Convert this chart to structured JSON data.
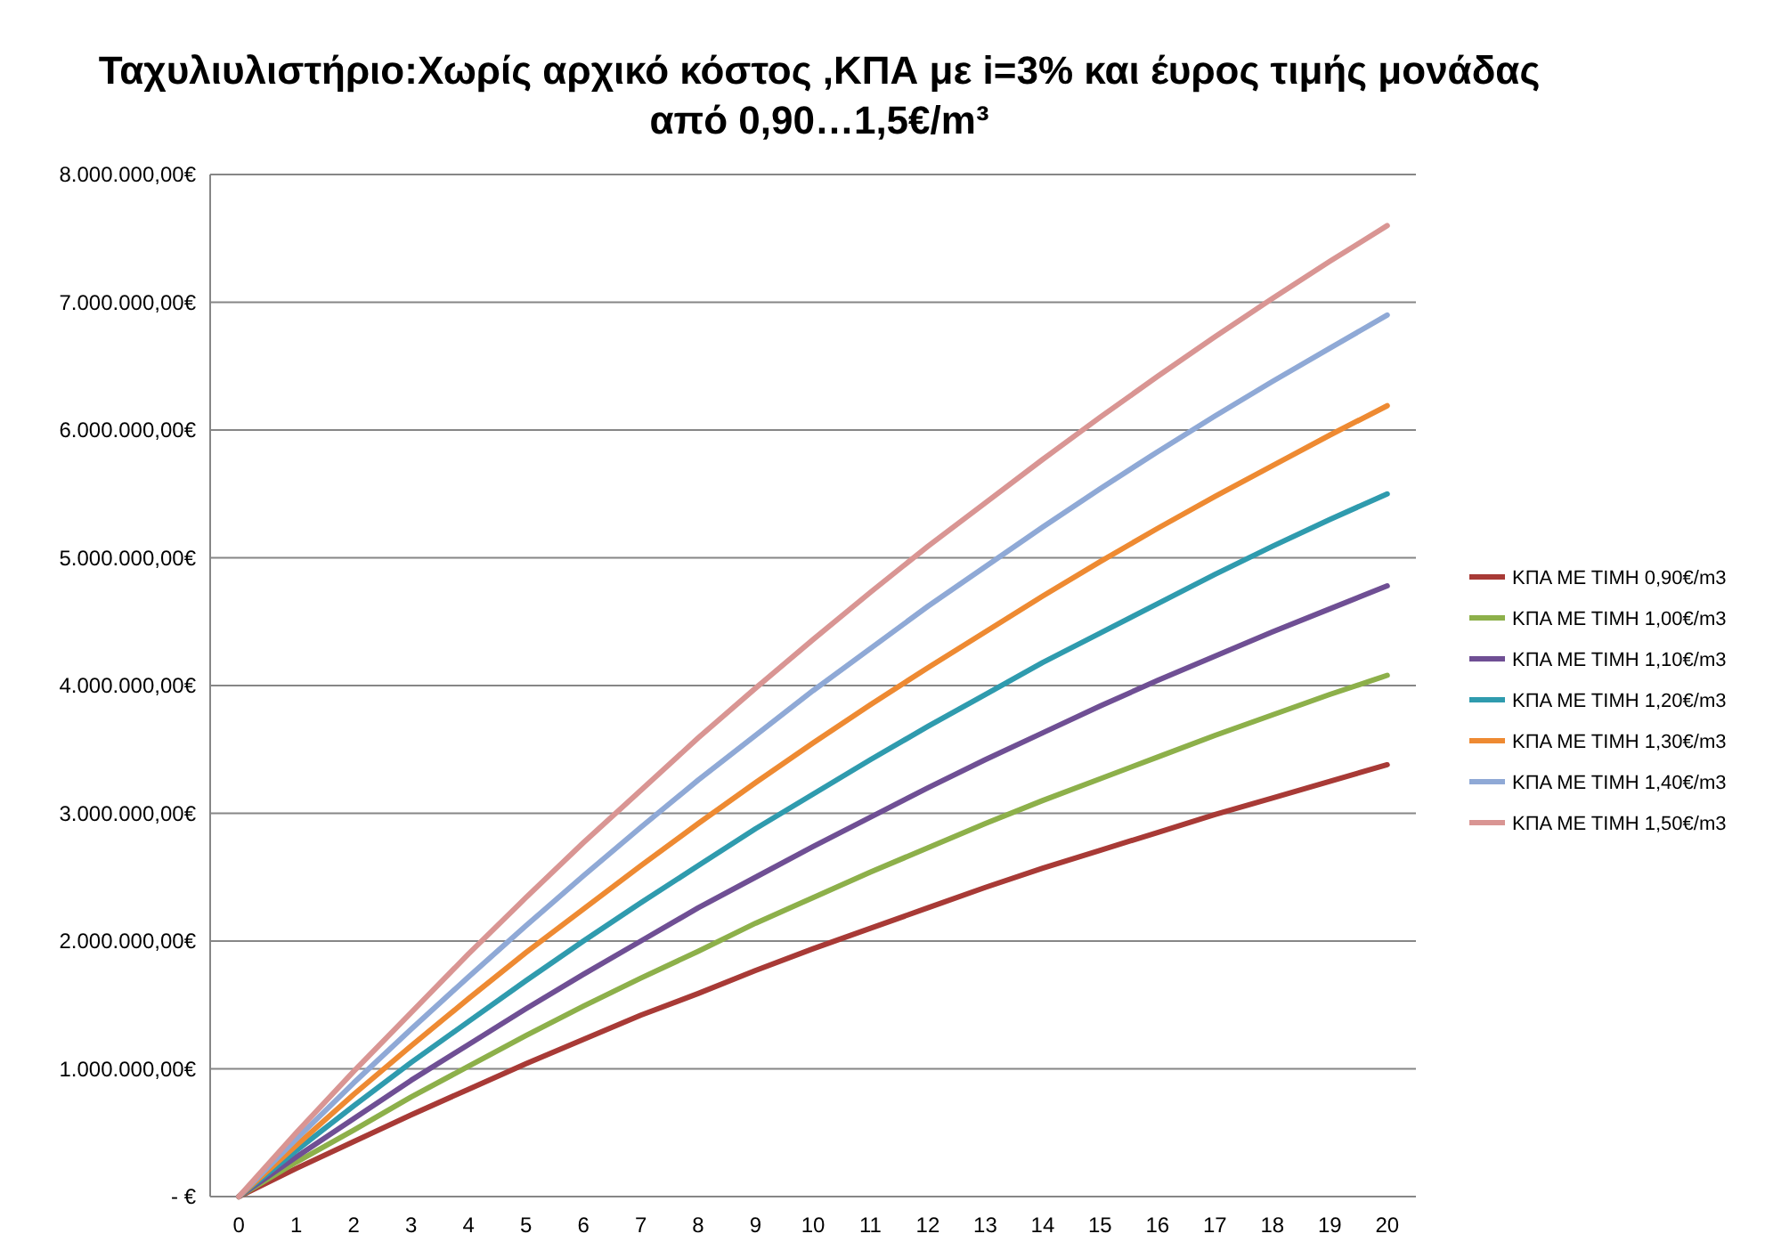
{
  "chart_data": {
    "type": "line",
    "title": "Ταχυλιυλιστήριο:Χωρίς αρχικό κόστος ,ΚΠΑ με i=3% και έυρος τιμής μονάδας\nαπό 0,90…1,5€/m³",
    "x": [
      0,
      1,
      2,
      3,
      4,
      5,
      6,
      7,
      8,
      9,
      10,
      11,
      12,
      13,
      14,
      15,
      16,
      17,
      18,
      19,
      20
    ],
    "xlim": [
      -0.5,
      20.5
    ],
    "xticks": [
      0,
      1,
      2,
      3,
      4,
      5,
      6,
      7,
      8,
      9,
      10,
      11,
      12,
      13,
      14,
      15,
      16,
      17,
      18,
      19,
      20
    ],
    "ylim": [
      0,
      8000000
    ],
    "yticks": [
      {
        "value": 0,
        "label": "-  €"
      },
      {
        "value": 1000000,
        "label": "1.000.000,00€"
      },
      {
        "value": 2000000,
        "label": "2.000.000,00€"
      },
      {
        "value": 3000000,
        "label": "3.000.000,00€"
      },
      {
        "value": 4000000,
        "label": "4.000.000,00€"
      },
      {
        "value": 5000000,
        "label": "5.000.000,00€"
      },
      {
        "value": 6000000,
        "label": "6.000.000,00€"
      },
      {
        "value": 7000000,
        "label": "7.000.000,00€"
      },
      {
        "value": 8000000,
        "label": "8.000.000,00€"
      }
    ],
    "grid": "y",
    "legend": "right",
    "marker": "none",
    "line_style": "solid",
    "series": [
      {
        "name": "ΚΠΑ  ΜΕ ΤΙΜΗ 0,90€/m3",
        "color": "#a83a36",
        "values": [
          0,
          220000,
          430000,
          640000,
          840000,
          1040000,
          1230000,
          1420000,
          1590000,
          1770000,
          1940000,
          2100000,
          2260000,
          2420000,
          2570000,
          2710000,
          2850000,
          2990000,
          3120000,
          3250000,
          3380000
        ]
      },
      {
        "name": "ΚΠΑ  ΜΕ ΤΙΜΗ 1,00€/m3",
        "color": "#8db04a",
        "values": [
          0,
          270000,
          520000,
          780000,
          1020000,
          1260000,
          1490000,
          1710000,
          1920000,
          2140000,
          2340000,
          2540000,
          2730000,
          2920000,
          3100000,
          3270000,
          3440000,
          3610000,
          3770000,
          3930000,
          4080000
        ]
      },
      {
        "name": "ΚΠΑ  ΜΕ ΤΙΜΗ 1,10€/m3",
        "color": "#6f4f94",
        "values": [
          0,
          310000,
          610000,
          910000,
          1190000,
          1470000,
          1740000,
          2000000,
          2260000,
          2500000,
          2740000,
          2970000,
          3200000,
          3420000,
          3630000,
          3840000,
          4040000,
          4230000,
          4420000,
          4600000,
          4780000
        ]
      },
      {
        "name": "ΚΠΑ  ΜΕ ΤΙΜΗ 1,20€/m3",
        "color": "#2f9bae",
        "values": [
          0,
          360000,
          710000,
          1050000,
          1370000,
          1690000,
          2000000,
          2300000,
          2590000,
          2880000,
          3150000,
          3420000,
          3680000,
          3930000,
          4180000,
          4410000,
          4640000,
          4870000,
          5090000,
          5300000,
          5500000
        ]
      },
      {
        "name": "ΚΠΑ  ΜΕ ΤΙΜΗ 1,30€/m3",
        "color": "#ee8a32",
        "values": [
          0,
          400000,
          800000,
          1180000,
          1550000,
          1910000,
          2250000,
          2590000,
          2920000,
          3240000,
          3550000,
          3850000,
          4140000,
          4420000,
          4700000,
          4970000,
          5230000,
          5480000,
          5720000,
          5960000,
          6190000
        ]
      },
      {
        "name": "ΚΠΑ  ΜΕ ΤΙΜΗ 1,40€/m3",
        "color": "#8fa9d6",
        "values": [
          0,
          450000,
          890000,
          1310000,
          1720000,
          2120000,
          2510000,
          2890000,
          3260000,
          3610000,
          3960000,
          4290000,
          4620000,
          4930000,
          5240000,
          5540000,
          5830000,
          6110000,
          6380000,
          6640000,
          6900000
        ]
      },
      {
        "name": "ΚΠΑ  ΜΕ ΤΙΜΗ 1,50€/m3",
        "color": "#d99593",
        "values": [
          0,
          500000,
          980000,
          1440000,
          1900000,
          2340000,
          2770000,
          3180000,
          3590000,
          3980000,
          4360000,
          4730000,
          5090000,
          5430000,
          5770000,
          6100000,
          6420000,
          6730000,
          7030000,
          7320000,
          7600000
        ]
      }
    ]
  }
}
